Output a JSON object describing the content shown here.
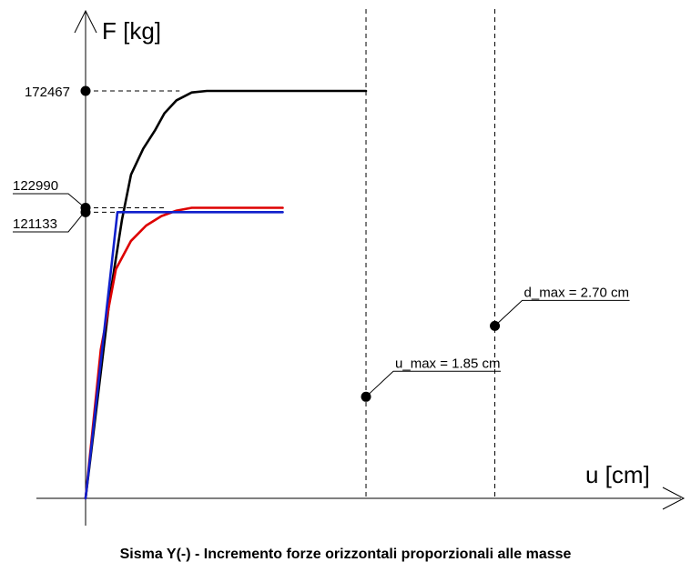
{
  "chart_data": {
    "type": "line",
    "title": "Sisma Y(-) - Incremento forze orizzontali proporzionali alle masse",
    "xlabel": "u [cm]",
    "ylabel": "F [kg]",
    "xlim": [
      0,
      3.4
    ],
    "ylim": [
      0,
      186000
    ],
    "grid": false,
    "y_ticks": [
      {
        "value": 172467,
        "label": "172467"
      },
      {
        "value": 122990,
        "label": "122990"
      },
      {
        "value": 121133,
        "label": "121133"
      }
    ],
    "series": [
      {
        "color": "#000000",
        "x": [
          0,
          0.16,
          0.24,
          0.3,
          0.38,
          0.46,
          0.52,
          0.6,
          0.7,
          0.8,
          1.0,
          1.4,
          1.85
        ],
        "y": [
          0,
          85000,
          118000,
          137000,
          148000,
          156000,
          163000,
          168500,
          171800,
          172467,
          172467,
          172467,
          172467
        ]
      },
      {
        "color": "#dd0000",
        "x": [
          0,
          0.1,
          0.2,
          0.3,
          0.4,
          0.5,
          0.6,
          0.7,
          1.0,
          1.3
        ],
        "y": [
          0,
          63000,
          97000,
          109000,
          115500,
          119500,
          121800,
          122990,
          122990,
          122990
        ]
      },
      {
        "color": "#1020cc",
        "x": [
          0,
          0.21,
          1.3
        ],
        "y": [
          0,
          121133,
          121133
        ]
      }
    ],
    "annotations": [
      {
        "label": "u_max = 1.85 cm",
        "x": 1.85,
        "y": 43000,
        "guide": "vertical dashed line"
      },
      {
        "label": "d_max = 2.70 cm",
        "x": 2.7,
        "y": 73000,
        "guide": "vertical dashed line"
      }
    ]
  }
}
